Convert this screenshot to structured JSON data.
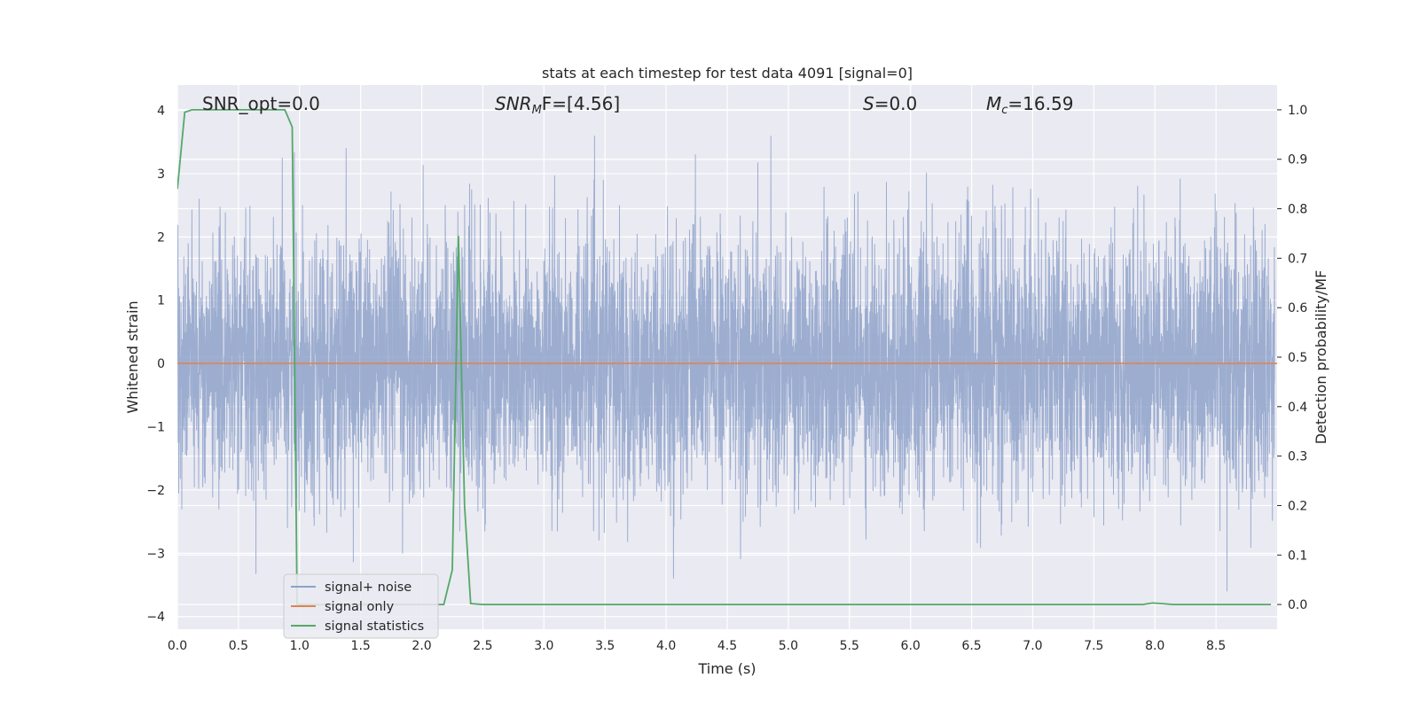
{
  "chart_data": {
    "type": "line",
    "title": "stats at each timestep for test data 4091 [signal=0]",
    "xlabel": "Time (s)",
    "ylabel": "Whitened strain",
    "y2label": "Detection probability/MF",
    "xlim": [
      0.0,
      9.0
    ],
    "ylim": [
      -4.2,
      4.4
    ],
    "y2lim": [
      -0.05,
      1.05
    ],
    "xticks": [
      "0.0",
      "0.5",
      "1.0",
      "1.5",
      "2.0",
      "2.5",
      "3.0",
      "3.5",
      "4.0",
      "4.5",
      "5.0",
      "5.5",
      "6.0",
      "6.5",
      "7.0",
      "7.5",
      "8.0",
      "8.5"
    ],
    "yticks": [
      "4",
      "3",
      "2",
      "1",
      "0",
      "−1",
      "−2",
      "−3",
      "−4"
    ],
    "y2ticks": [
      "1.0",
      "0.9",
      "0.8",
      "0.7",
      "0.6",
      "0.5",
      "0.4",
      "0.3",
      "0.2",
      "0.1",
      "0.0"
    ],
    "grid": true,
    "legend_position": "lower-left",
    "annotations": {
      "snr_opt": "SNR_opt=0.0",
      "snr_mf_base": "SNR",
      "snr_mf_sub": "M",
      "snr_mf_rest": "F=[4.56]",
      "s_stat": "S",
      "s_rest": "=0.0",
      "mc_base": "M",
      "mc_sub": "c",
      "mc_rest": "=16.59"
    },
    "series": [
      {
        "name": "signal+ noise",
        "color": "#8ea2ca",
        "axis": "left",
        "description": "dense whitened noise, approx. 2048 samples per second, amplitude envelope about ±2 with peaks to ±3.6"
      },
      {
        "name": "signal only",
        "color": "#dd8452",
        "axis": "left",
        "x": [
          0.0,
          9.0
        ],
        "y": [
          0.0,
          0.0
        ]
      },
      {
        "name": "signal statistics",
        "color": "#55a868",
        "axis": "right",
        "x": [
          0.0,
          0.06,
          0.12,
          0.2,
          0.3,
          0.4,
          0.5,
          0.6,
          0.7,
          0.8,
          0.88,
          0.94,
          0.98,
          1.04,
          1.2,
          1.4,
          1.6,
          1.8,
          2.0,
          2.1,
          2.18,
          2.25,
          2.3,
          2.35,
          2.4,
          2.5,
          3.0,
          4.0,
          5.0,
          6.0,
          7.0,
          7.5,
          7.9,
          7.98,
          8.05,
          8.15,
          8.5,
          8.95
        ],
        "y": [
          0.84,
          0.995,
          1.0,
          1.0,
          1.0,
          1.0,
          1.0,
          1.0,
          1.0,
          1.0,
          1.0,
          0.965,
          0.0,
          0.0,
          0.0,
          0.0,
          0.0,
          0.0,
          0.0,
          0.0,
          0.0,
          0.07,
          0.745,
          0.2,
          0.002,
          0.0,
          0.0,
          0.0,
          0.0,
          0.0,
          0.0,
          0.0,
          0.0,
          0.003,
          0.002,
          0.0,
          0.0,
          0.0
        ]
      }
    ]
  }
}
